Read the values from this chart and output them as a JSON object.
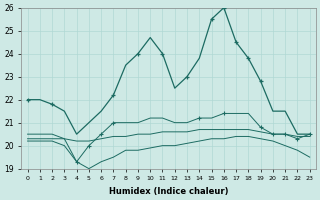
{
  "xlabel": "Humidex (Indice chaleur)",
  "x": [
    0,
    1,
    2,
    3,
    4,
    5,
    6,
    7,
    8,
    9,
    10,
    11,
    12,
    13,
    14,
    15,
    16,
    17,
    18,
    19,
    20,
    21,
    22,
    23
  ],
  "line1": [
    22.0,
    22.0,
    21.8,
    21.5,
    20.5,
    21.0,
    21.5,
    22.2,
    23.5,
    24.0,
    24.7,
    24.0,
    22.5,
    23.0,
    23.8,
    25.5,
    26.0,
    24.5,
    23.8,
    22.8,
    21.5,
    21.5,
    20.5,
    20.5
  ],
  "line2": [
    20.5,
    20.5,
    20.5,
    20.3,
    19.3,
    20.0,
    20.5,
    21.0,
    21.0,
    21.0,
    21.2,
    21.2,
    21.0,
    21.0,
    21.2,
    21.2,
    21.4,
    21.4,
    21.4,
    20.8,
    20.5,
    20.5,
    20.3,
    20.5
  ],
  "line3": [
    20.3,
    20.3,
    20.3,
    20.3,
    20.2,
    20.2,
    20.3,
    20.4,
    20.4,
    20.5,
    20.5,
    20.6,
    20.6,
    20.6,
    20.7,
    20.7,
    20.7,
    20.7,
    20.7,
    20.6,
    20.5,
    20.5,
    20.4,
    20.4
  ],
  "line4": [
    20.2,
    20.2,
    20.2,
    20.0,
    19.3,
    19.0,
    19.3,
    19.5,
    19.8,
    19.8,
    19.9,
    20.0,
    20.0,
    20.1,
    20.2,
    20.3,
    20.3,
    20.4,
    20.4,
    20.3,
    20.2,
    20.0,
    19.8,
    19.5
  ],
  "line1_markers": [
    0,
    2,
    7,
    9,
    11,
    13,
    15,
    16,
    17,
    18,
    19
  ],
  "line2_markers": [
    4,
    5,
    6,
    7,
    14,
    16,
    19,
    20,
    21,
    22,
    23
  ],
  "bg_color": "#cee9e5",
  "line_color": "#1c6b62",
  "grid_color": "#b0d8d4",
  "ylim": [
    19,
    26
  ],
  "yticks": [
    19,
    20,
    21,
    22,
    23,
    24,
    25,
    26
  ],
  "figw": 3.2,
  "figh": 2.0,
  "dpi": 100
}
